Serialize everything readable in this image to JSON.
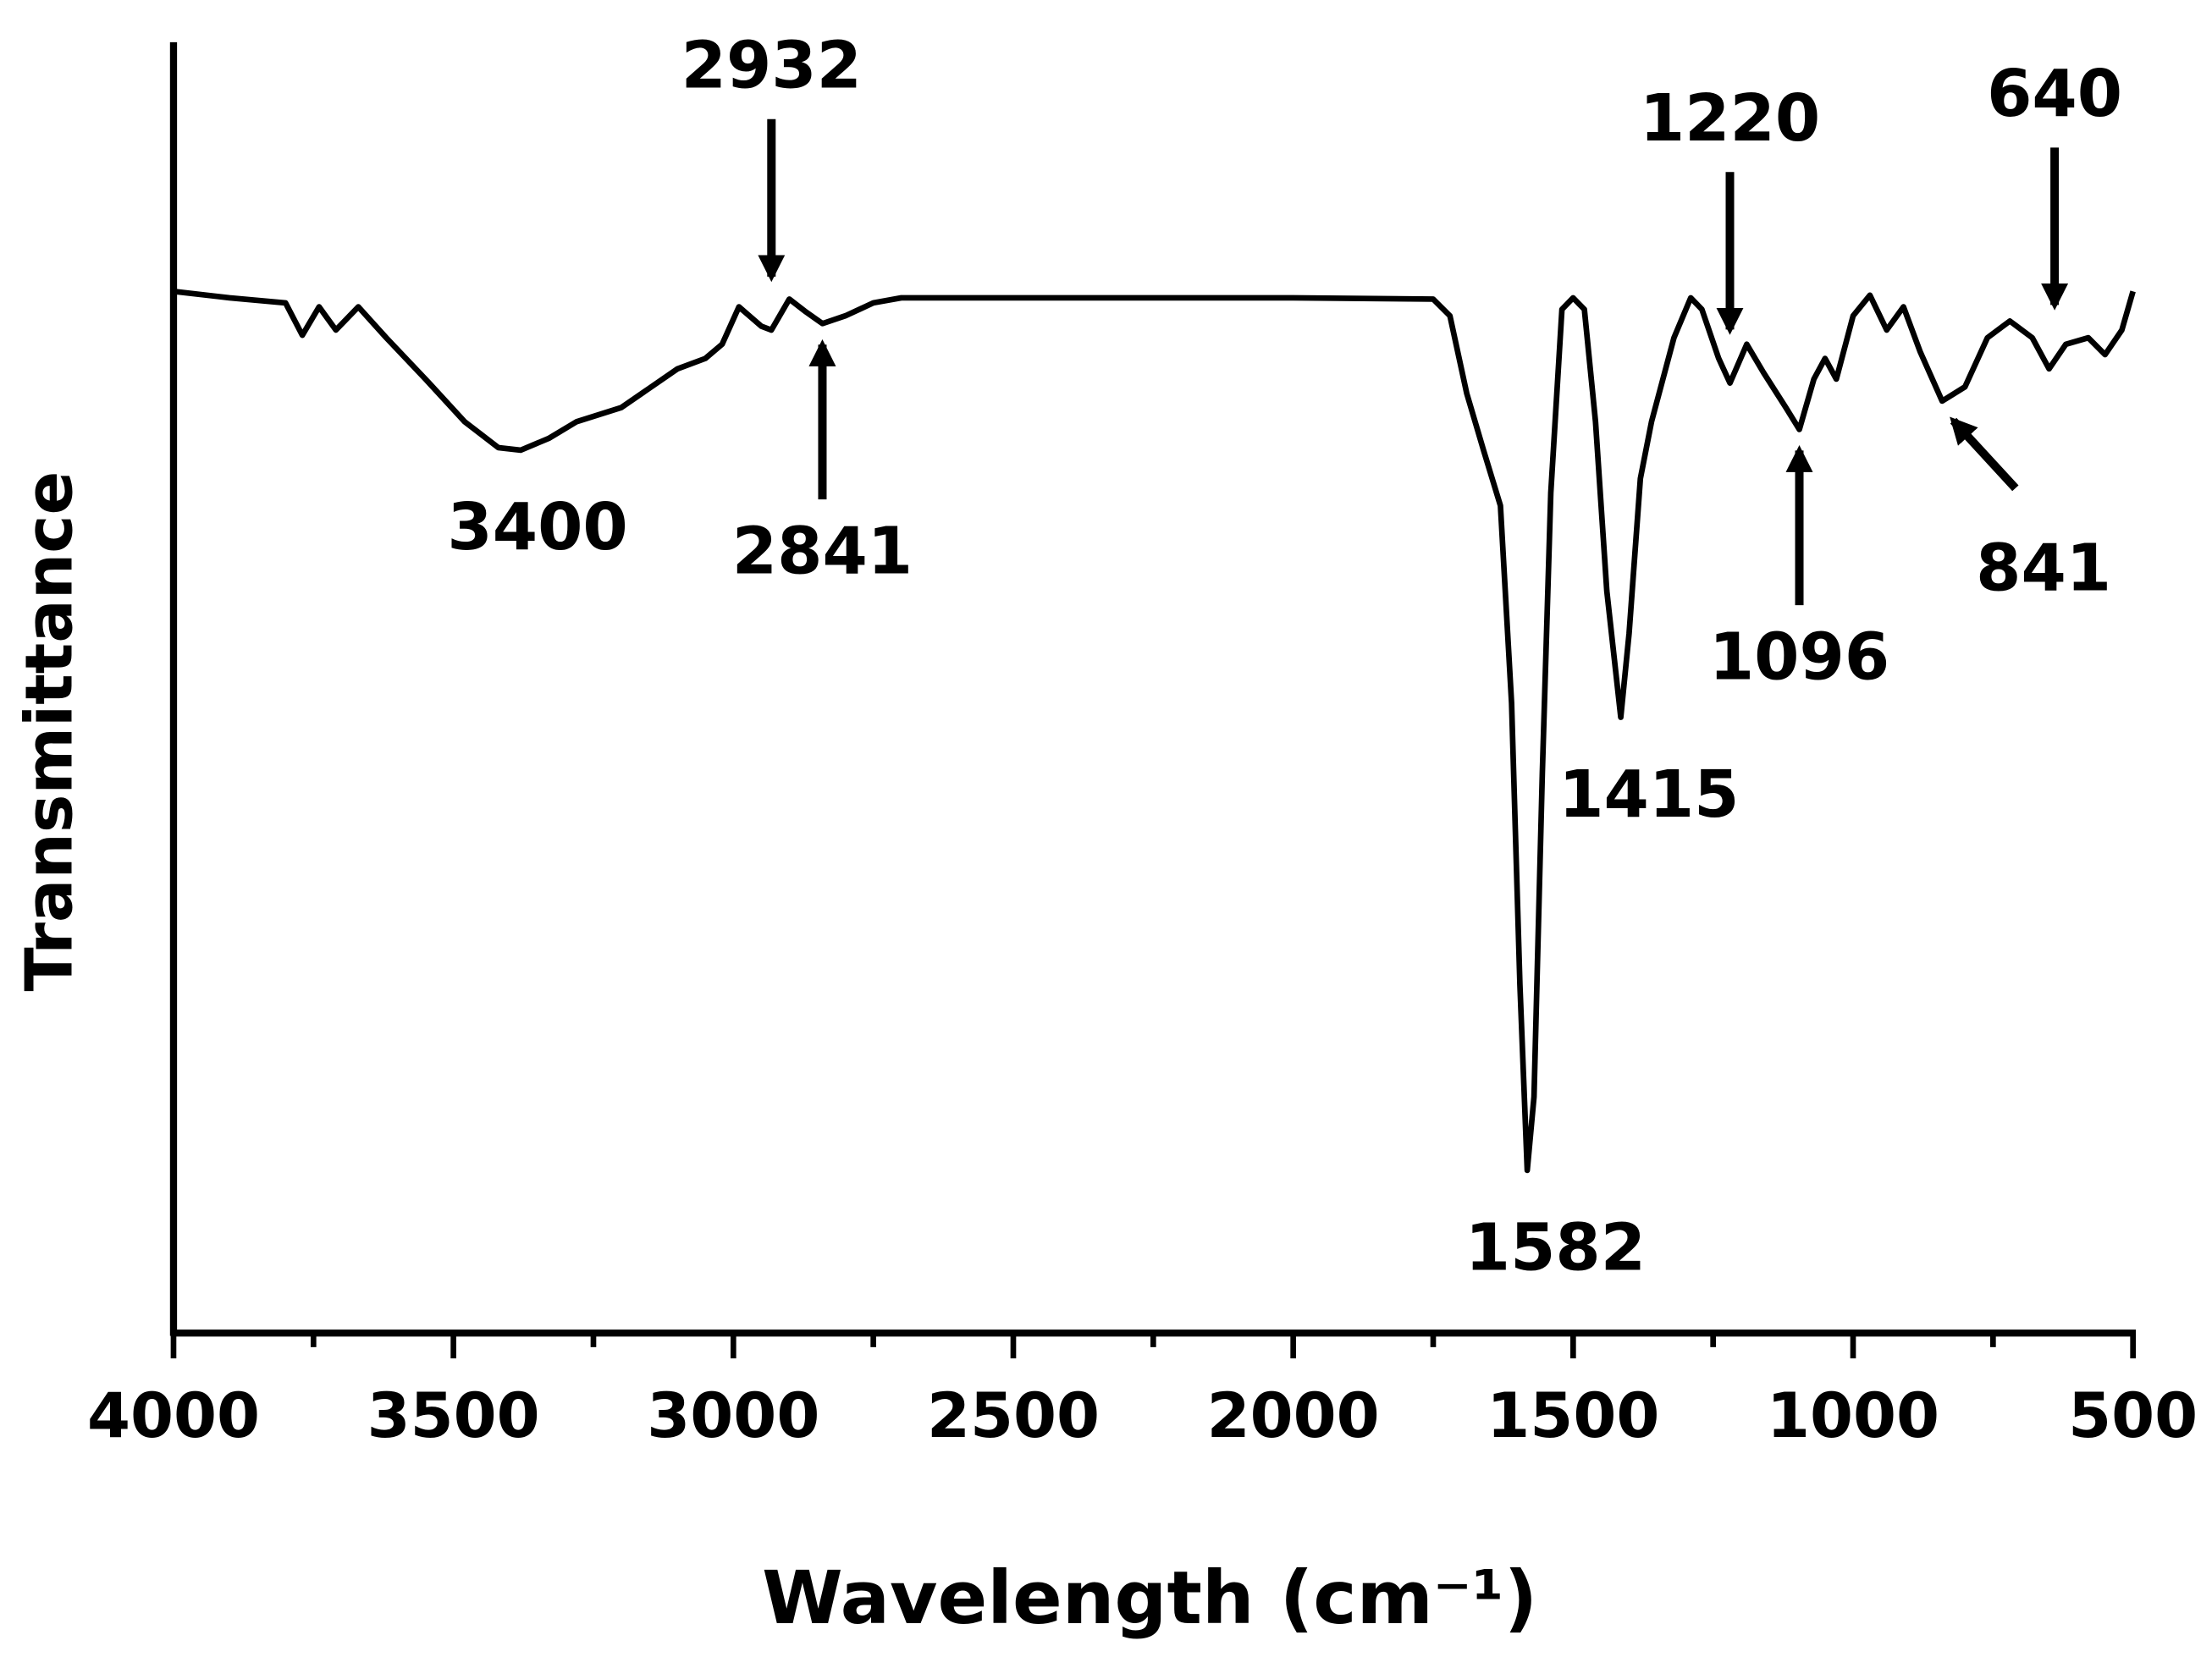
{
  "chart_data": {
    "type": "line",
    "xlabel": "Wavelength (cm⁻¹)",
    "ylabel": "Transmittance",
    "xlim": [
      4000,
      500
    ],
    "ylim": [
      0,
      100
    ],
    "xticks": [
      4000,
      3500,
      3000,
      2500,
      2000,
      1500,
      1000,
      500
    ],
    "xminorticks": [
      3750,
      3250,
      2750,
      2250,
      1750,
      1250,
      750
    ],
    "color": "#000000",
    "x": [
      4000,
      3900,
      3800,
      3770,
      3740,
      3710,
      3670,
      3620,
      3550,
      3480,
      3420,
      3380,
      3330,
      3280,
      3200,
      3100,
      3050,
      3020,
      2990,
      2950,
      2932,
      2900,
      2870,
      2841,
      2800,
      2750,
      2700,
      2000,
      1750,
      1720,
      1690,
      1660,
      1630,
      1610,
      1595,
      1582,
      1570,
      1555,
      1540,
      1520,
      1500,
      1480,
      1460,
      1440,
      1415,
      1400,
      1380,
      1360,
      1320,
      1290,
      1270,
      1240,
      1220,
      1190,
      1160,
      1120,
      1096,
      1070,
      1050,
      1030,
      1000,
      970,
      940,
      910,
      880,
      841,
      800,
      760,
      720,
      680,
      650,
      620,
      580,
      550,
      520,
      500
    ],
    "values": [
      80.7,
      80.2,
      79.8,
      77.3,
      79.5,
      77.7,
      79.5,
      77.1,
      73.9,
      70.6,
      68.6,
      68.4,
      69.3,
      70.6,
      71.7,
      74.7,
      75.5,
      76.6,
      79.5,
      78.0,
      77.7,
      80.1,
      79.1,
      78.2,
      78.8,
      79.8,
      80.2,
      80.2,
      80.1,
      78.8,
      72.8,
      68.4,
      64.1,
      48.8,
      27.0,
      12.6,
      18.3,
      43.4,
      65.1,
      79.3,
      80.2,
      79.3,
      70.6,
      57.5,
      47.7,
      54.2,
      66.2,
      70.6,
      77.1,
      80.2,
      79.3,
      75.5,
      73.6,
      76.6,
      74.4,
      71.7,
      70.0,
      73.9,
      75.5,
      73.9,
      78.8,
      80.4,
      77.7,
      79.5,
      76.0,
      72.2,
      73.3,
      77.1,
      78.4,
      77.1,
      74.7,
      76.6,
      77.1,
      75.8,
      77.7,
      80.7
    ],
    "annotations": [
      {
        "x": 3400,
        "y": 68.4,
        "arrow": "none"
      },
      {
        "x": 2932,
        "y": 77.7,
        "arrow": "down"
      },
      {
        "x": 2841,
        "y": 78.2,
        "arrow": "up"
      },
      {
        "x": 1582,
        "y": 12.6,
        "arrow": "none"
      },
      {
        "x": 1415,
        "y": 47.7,
        "arrow": "none"
      },
      {
        "x": 1220,
        "y": 73.6,
        "arrow": "down"
      },
      {
        "x": 1096,
        "y": 70.0,
        "arrow": "up"
      },
      {
        "x": 841,
        "y": 72.2,
        "arrow": "up-left"
      },
      {
        "x": 640,
        "y": 75.5,
        "arrow": "down"
      }
    ]
  }
}
